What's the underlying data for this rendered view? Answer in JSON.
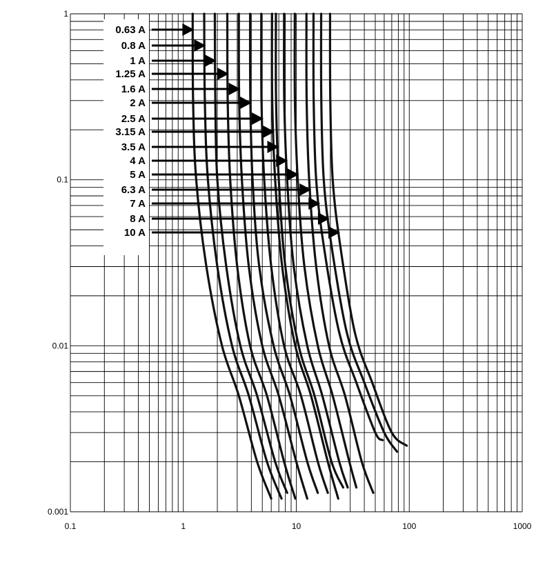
{
  "chart_data": {
    "type": "line",
    "xscale": "log",
    "yscale": "log",
    "xlim": [
      0.1,
      1000
    ],
    "ylim": [
      0.001,
      1
    ],
    "grid": true,
    "legend": "left",
    "title": "",
    "xlabel": "",
    "ylabel": "",
    "x_ticks": [
      "0.1",
      "1",
      "10",
      "100",
      "1000"
    ],
    "y_ticks": [
      "0.001",
      "0.01",
      "0.1",
      "1"
    ],
    "series": [
      {
        "name": "0.63 A",
        "x": [
          1.21,
          1.22,
          1.3,
          1.6,
          2.2,
          3.1,
          4.5,
          6.0
        ],
        "y": [
          1,
          0.3,
          0.1,
          0.03,
          0.01,
          0.005,
          0.002,
          0.0012
        ]
      },
      {
        "name": "0.8 A",
        "x": [
          1.53,
          1.55,
          1.65,
          2.0,
          2.7,
          3.8,
          5.5,
          7.4
        ],
        "y": [
          1,
          0.3,
          0.1,
          0.03,
          0.01,
          0.005,
          0.002,
          0.0012
        ]
      },
      {
        "name": "1 A",
        "x": [
          1.9,
          1.92,
          2.0,
          2.4,
          3.2,
          4.5,
          6.5,
          8.3
        ],
        "y": [
          1,
          0.3,
          0.1,
          0.03,
          0.01,
          0.005,
          0.002,
          0.0013
        ]
      },
      {
        "name": "1.25 A",
        "x": [
          2.45,
          2.47,
          2.6,
          3.0,
          3.9,
          5.5,
          7.8,
          9.8
        ],
        "y": [
          1,
          0.3,
          0.1,
          0.03,
          0.01,
          0.005,
          0.002,
          0.0012
        ]
      },
      {
        "name": "1.6 A",
        "x": [
          3.1,
          3.12,
          3.3,
          3.8,
          5.0,
          7.0,
          10.0,
          12.5
        ],
        "y": [
          1,
          0.3,
          0.1,
          0.03,
          0.01,
          0.005,
          0.002,
          0.0012
        ]
      },
      {
        "name": "2 A",
        "x": [
          3.9,
          3.92,
          4.1,
          4.7,
          6.3,
          8.8,
          12.5,
          15.5
        ],
        "y": [
          1,
          0.3,
          0.1,
          0.03,
          0.01,
          0.005,
          0.002,
          0.0013
        ]
      },
      {
        "name": "2.5 A",
        "x": [
          4.9,
          4.92,
          5.2,
          6.0,
          7.8,
          11.0,
          15.5,
          19.0
        ],
        "y": [
          1,
          0.3,
          0.1,
          0.03,
          0.01,
          0.005,
          0.002,
          0.0013
        ]
      },
      {
        "name": "3.15 A",
        "x": [
          6.1,
          6.12,
          6.5,
          7.5,
          9.8,
          13.5,
          19.0,
          23.5
        ],
        "y": [
          1,
          0.3,
          0.1,
          0.03,
          0.01,
          0.005,
          0.002,
          0.0012
        ]
      },
      {
        "name": "3.5 A",
        "x": [
          6.6,
          6.62,
          7.0,
          8.0,
          10.5,
          14.5,
          20.5,
          26.0
        ],
        "y": [
          1,
          0.3,
          0.1,
          0.03,
          0.01,
          0.005,
          0.002,
          0.0014
        ]
      },
      {
        "name": "4 A",
        "x": [
          7.8,
          7.82,
          8.3,
          9.5,
          12.5,
          17.0,
          24.0,
          28.5
        ],
        "y": [
          1,
          0.3,
          0.1,
          0.03,
          0.01,
          0.005,
          0.002,
          0.0014
        ]
      },
      {
        "name": "5 A",
        "x": [
          9.7,
          9.72,
          10.3,
          11.8,
          15.5,
          21.0,
          29.5,
          34.0
        ],
        "y": [
          1,
          0.3,
          0.1,
          0.03,
          0.01,
          0.005,
          0.002,
          0.0014
        ]
      },
      {
        "name": "6.3 A",
        "x": [
          12.3,
          12.35,
          13.0,
          15.0,
          19.5,
          27.0,
          38.0,
          48.0
        ],
        "y": [
          1,
          0.3,
          0.1,
          0.03,
          0.01,
          0.005,
          0.002,
          0.0013
        ]
      },
      {
        "name": "7 A",
        "x": [
          14.2,
          14.25,
          15.0,
          17.5,
          24.0,
          34.0,
          50.0,
          58.0
        ],
        "y": [
          1,
          0.3,
          0.1,
          0.04,
          0.012,
          0.006,
          0.003,
          0.0027
        ]
      },
      {
        "name": "8 A",
        "x": [
          16.6,
          16.65,
          17.5,
          20.5,
          28.0,
          40.0,
          60.0,
          78.0
        ],
        "y": [
          1,
          0.3,
          0.1,
          0.04,
          0.012,
          0.006,
          0.003,
          0.0023
        ]
      },
      {
        "name": "10 A",
        "x": [
          19.9,
          20.0,
          21.0,
          24.5,
          33.0,
          47.0,
          70.0,
          95.0
        ],
        "y": [
          1,
          0.3,
          0.1,
          0.04,
          0.012,
          0.006,
          0.003,
          0.0025
        ]
      }
    ]
  }
}
